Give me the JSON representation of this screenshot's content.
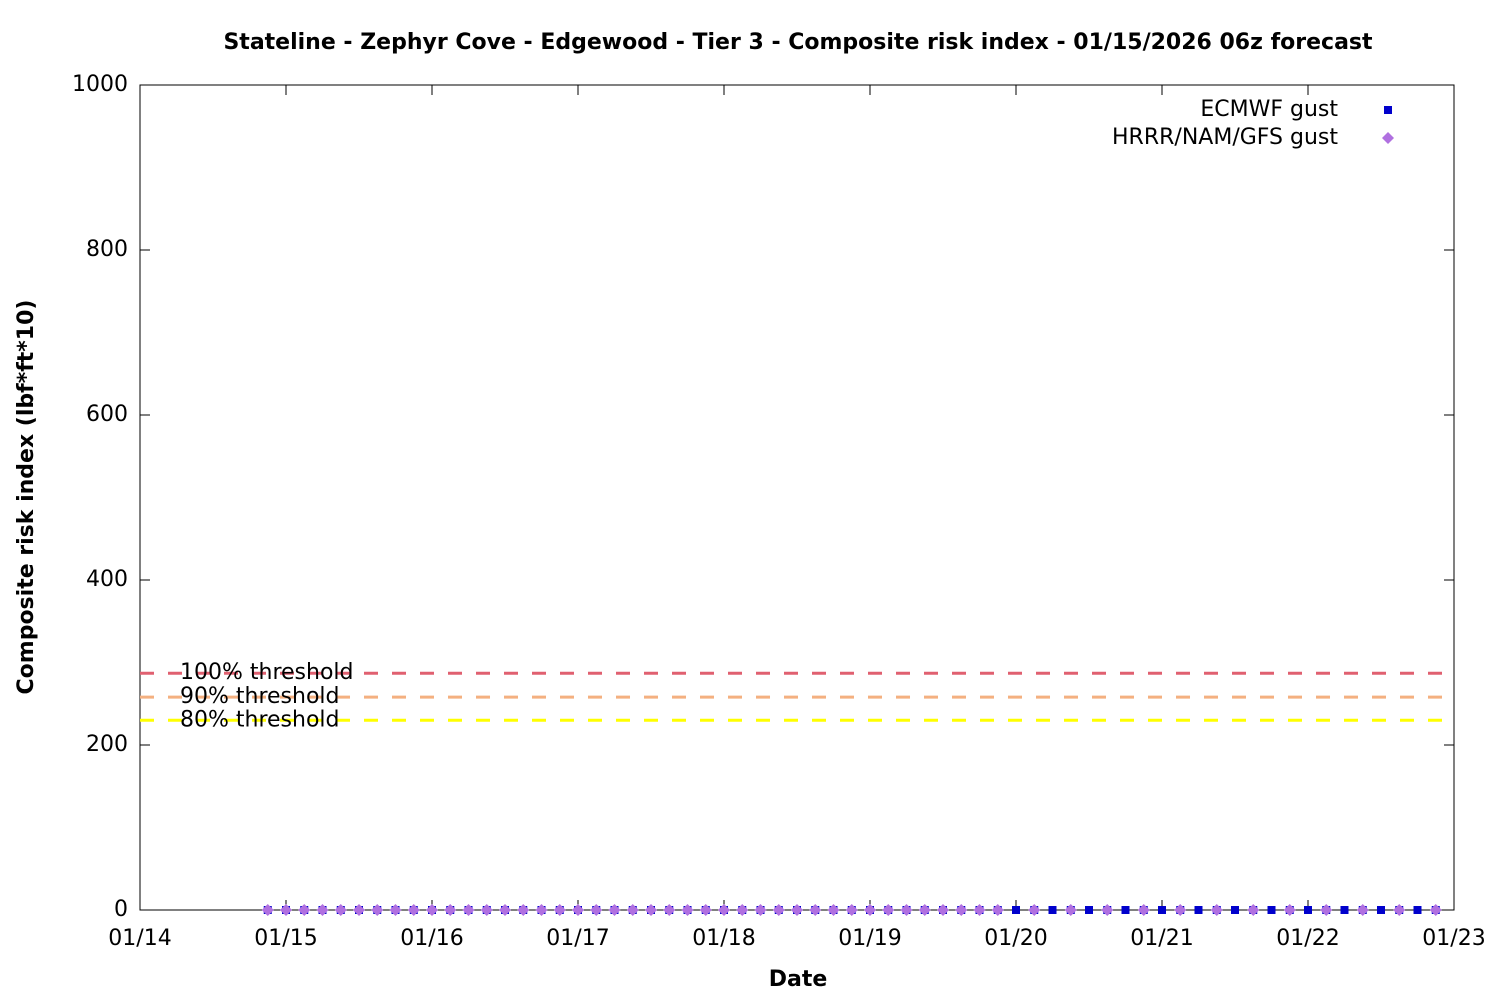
{
  "chart_data": {
    "type": "scatter",
    "title": "Stateline - Zephyr Cove - Edgewood - Tier 3 - Composite risk index - 01/15/2026 06z forecast",
    "x_label": "Date",
    "y_label": "Composite risk index (lbf*ft*10)",
    "xlim": [
      "01/14",
      "01/23"
    ],
    "xticks": [
      "01/14",
      "01/15",
      "01/16",
      "01/17",
      "01/18",
      "01/19",
      "01/20",
      "01/21",
      "01/22",
      "01/23"
    ],
    "ylim": [
      0,
      1000
    ],
    "yticks": [
      0,
      200,
      400,
      600,
      800,
      1000
    ],
    "legend": "top-right",
    "thresholds": [
      {
        "label": "100% threshold",
        "value": 287,
        "color": "#e06070"
      },
      {
        "label": "90% threshold",
        "value": 258,
        "color": "#f4b080"
      },
      {
        "label": "80% threshold",
        "value": 230,
        "color": "#ffff00"
      }
    ],
    "series": [
      {
        "name": "ECMWF gust",
        "color": "#0000cc",
        "marker": "square",
        "x": [
          "01/14 21:00",
          "01/15 00:00",
          "01/15 03:00",
          "01/15 06:00",
          "01/15 09:00",
          "01/15 12:00",
          "01/15 15:00",
          "01/15 18:00",
          "01/15 21:00",
          "01/16 00:00",
          "01/16 03:00",
          "01/16 06:00",
          "01/16 09:00",
          "01/16 12:00",
          "01/16 15:00",
          "01/16 18:00",
          "01/16 21:00",
          "01/17 00:00",
          "01/17 03:00",
          "01/17 06:00",
          "01/17 09:00",
          "01/17 12:00",
          "01/17 15:00",
          "01/17 18:00",
          "01/17 21:00",
          "01/18 00:00",
          "01/18 03:00",
          "01/18 06:00",
          "01/18 09:00",
          "01/18 12:00",
          "01/18 15:00",
          "01/18 18:00",
          "01/18 21:00",
          "01/19 00:00",
          "01/19 03:00",
          "01/19 06:00",
          "01/19 09:00",
          "01/19 12:00",
          "01/19 15:00",
          "01/19 18:00",
          "01/19 21:00",
          "01/20 00:00",
          "01/20 03:00",
          "01/20 06:00",
          "01/20 09:00",
          "01/20 12:00",
          "01/20 15:00",
          "01/20 18:00",
          "01/20 21:00",
          "01/21 00:00",
          "01/21 03:00",
          "01/21 06:00",
          "01/21 09:00",
          "01/21 12:00",
          "01/21 15:00",
          "01/21 18:00",
          "01/21 21:00",
          "01/22 00:00",
          "01/22 03:00",
          "01/22 06:00",
          "01/22 09:00",
          "01/22 12:00",
          "01/22 15:00",
          "01/22 18:00",
          "01/22 21:00"
        ],
        "values": [
          0,
          0,
          0,
          0,
          0,
          0,
          0,
          0,
          0,
          0,
          0,
          0,
          0,
          0,
          0,
          0,
          0,
          0,
          0,
          0,
          0,
          0,
          0,
          0,
          0,
          0,
          0,
          0,
          0,
          0,
          0,
          0,
          0,
          0,
          0,
          0,
          0,
          0,
          0,
          0,
          0,
          0,
          0,
          0,
          0,
          0,
          0,
          0,
          0,
          0,
          0,
          0,
          0,
          0,
          0,
          0,
          0,
          0,
          0,
          0,
          0,
          0,
          0,
          0,
          0
        ]
      },
      {
        "name": "HRRR/NAM/GFS gust",
        "color": "#b070e0",
        "marker": "diamond",
        "x": [
          "01/14 21:00",
          "01/15 00:00",
          "01/15 03:00",
          "01/15 06:00",
          "01/15 09:00",
          "01/15 12:00",
          "01/15 15:00",
          "01/15 18:00",
          "01/15 21:00",
          "01/16 00:00",
          "01/16 03:00",
          "01/16 06:00",
          "01/16 09:00",
          "01/16 12:00",
          "01/16 15:00",
          "01/16 18:00",
          "01/16 21:00",
          "01/17 00:00",
          "01/17 03:00",
          "01/17 06:00",
          "01/17 09:00",
          "01/17 12:00",
          "01/17 15:00",
          "01/17 18:00",
          "01/17 21:00",
          "01/18 00:00",
          "01/18 03:00",
          "01/18 06:00",
          "01/18 09:00",
          "01/18 12:00",
          "01/18 15:00",
          "01/18 18:00",
          "01/18 21:00",
          "01/19 00:00",
          "01/19 03:00",
          "01/19 06:00",
          "01/19 09:00",
          "01/19 12:00",
          "01/19 15:00",
          "01/19 18:00",
          "01/19 21:00",
          "01/20 03:00",
          "01/20 09:00",
          "01/20 15:00",
          "01/20 21:00",
          "01/21 03:00",
          "01/21 09:00",
          "01/21 15:00",
          "01/21 21:00",
          "01/22 03:00",
          "01/22 09:00",
          "01/22 15:00",
          "01/22 21:00"
        ],
        "values": [
          0,
          0,
          0,
          0,
          0,
          0,
          0,
          0,
          0,
          0,
          0,
          0,
          0,
          0,
          0,
          0,
          0,
          0,
          0,
          0,
          0,
          0,
          0,
          0,
          0,
          0,
          0,
          0,
          0,
          0,
          0,
          0,
          0,
          0,
          0,
          0,
          0,
          0,
          0,
          0,
          0,
          0,
          0,
          0,
          0,
          0,
          0,
          0,
          0,
          0,
          0,
          0,
          0
        ]
      }
    ]
  }
}
